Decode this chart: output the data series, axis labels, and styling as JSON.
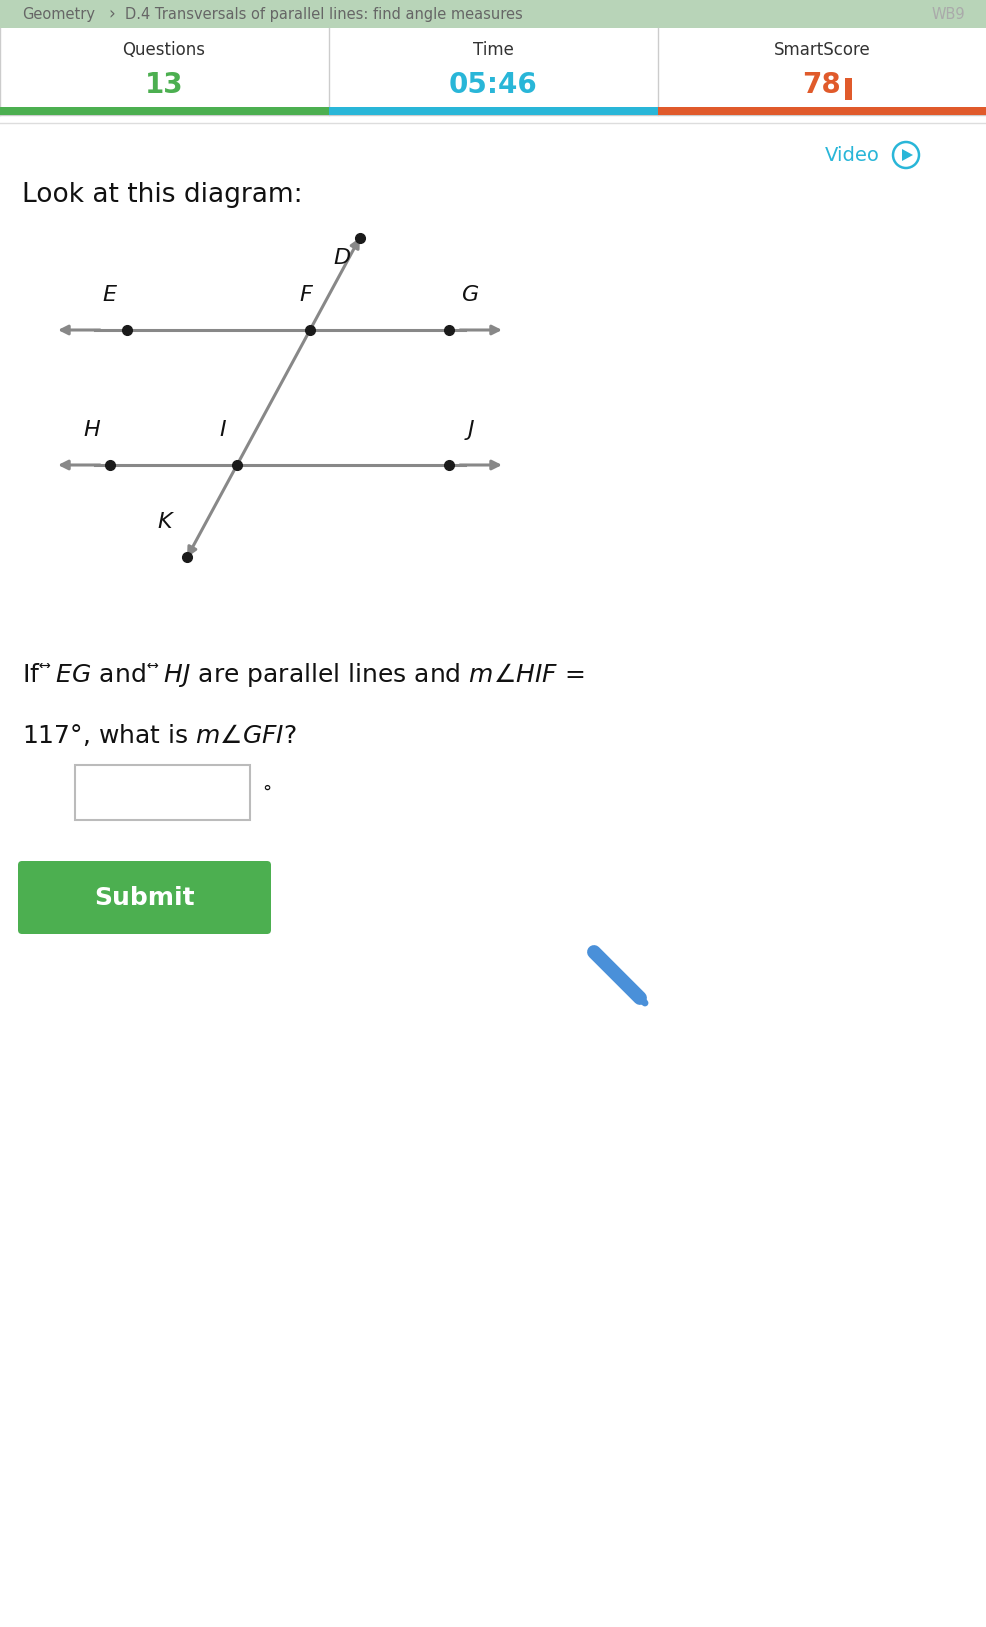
{
  "bg_color": "#ffffff",
  "header_bg": "#b8d4b8",
  "header_text_color": "#666666",
  "header_wb_color": "#aaaaaa",
  "questions_label": "Questions",
  "time_label": "Time",
  "smartscore_label": "SmartScore",
  "questions_value": "13",
  "time_value": "05:46",
  "smartscore_value": "78",
  "questions_color": "#4caf50",
  "time_color": "#29b6d8",
  "smartscore_color": "#e05a2b",
  "green_bar_color": "#4caf50",
  "blue_bar_color": "#29b6d8",
  "orange_bar_color": "#e05a2b",
  "video_color": "#29b6d8",
  "line_color": "#888888",
  "dot_color": "#1a1a1a",
  "submit_bg": "#4caf50",
  "pencil_color": "#4a90d9"
}
